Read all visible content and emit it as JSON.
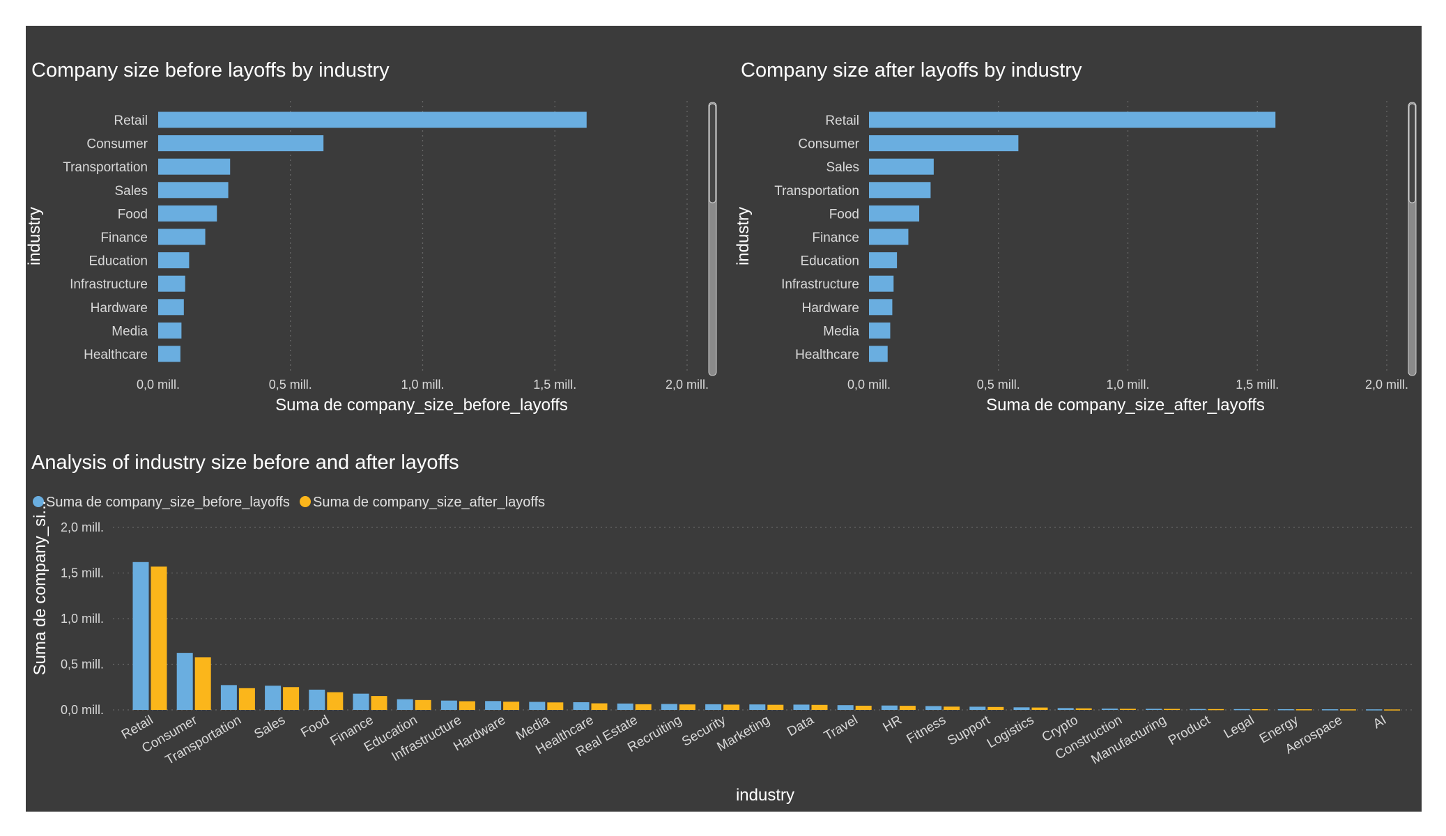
{
  "colors": {
    "background": "#3b3b3b",
    "before": "#6aaee0",
    "after": "#fbb61b",
    "text": "#ffffff",
    "grid": "#666666"
  },
  "chart_data": [
    {
      "type": "bar",
      "orientation": "horizontal",
      "title": "Company size before layoffs by industry",
      "xlabel": "Suma de company_size_before_layoffs",
      "ylabel": "industry",
      "xlim": [
        0,
        2000000
      ],
      "x_ticks": [
        "0,0 mill.",
        "0,5 mill.",
        "1,0 mill.",
        "1,5 mill.",
        "2,0 mill."
      ],
      "categories": [
        "Retail",
        "Consumer",
        "Transportation",
        "Sales",
        "Food",
        "Finance",
        "Education",
        "Infrastructure",
        "Hardware",
        "Media",
        "Healthcare"
      ],
      "values": [
        1620000,
        625000,
        272000,
        265000,
        222000,
        178000,
        117000,
        102000,
        97000,
        88000,
        84000
      ],
      "grid": true,
      "scrollbar": true
    },
    {
      "type": "bar",
      "orientation": "horizontal",
      "title": "Company size after layoffs by industry",
      "xlabel": "Suma de company_size_after_layoffs",
      "ylabel": "industry",
      "xlim": [
        0,
        2000000
      ],
      "x_ticks": [
        "0,0 mill.",
        "0,5 mill.",
        "1,0 mill.",
        "1,5 mill.",
        "2,0 mill."
      ],
      "categories": [
        "Retail",
        "Consumer",
        "Sales",
        "Transportation",
        "Food",
        "Finance",
        "Education",
        "Infrastructure",
        "Hardware",
        "Media",
        "Healthcare"
      ],
      "values": [
        1570000,
        577000,
        250000,
        238000,
        194000,
        152000,
        108000,
        95000,
        90000,
        82000,
        72000
      ],
      "grid": true,
      "scrollbar": true
    },
    {
      "type": "bar",
      "orientation": "vertical",
      "title": "Analysis of industry size before and after layoffs",
      "xlabel": "industry",
      "ylabel": "Suma de company_si...",
      "ylim": [
        0,
        2000000
      ],
      "y_ticks": [
        "0,0 mill.",
        "0,5 mill.",
        "1,0 mill.",
        "1,5 mill.",
        "2,0 mill."
      ],
      "legend": "top-left",
      "grid": true,
      "categories": [
        "Retail",
        "Consumer",
        "Transportation",
        "Sales",
        "Food",
        "Finance",
        "Education",
        "Infrastructure",
        "Hardware",
        "Media",
        "Healthcare",
        "Real Estate",
        "Recruiting",
        "Security",
        "Marketing",
        "Data",
        "Travel",
        "HR",
        "Fitness",
        "Support",
        "Logistics",
        "Crypto",
        "Construction",
        "Manufacturing",
        "Product",
        "Legal",
        "Energy",
        "Aerospace",
        "AI"
      ],
      "series": [
        {
          "name": "Suma de company_size_before_layoffs",
          "values": [
            1620000,
            625000,
            272000,
            265000,
            222000,
            178000,
            117000,
            102000,
            97000,
            88000,
            84000,
            70000,
            65000,
            62000,
            60000,
            58000,
            52000,
            48000,
            42000,
            35000,
            28000,
            20000,
            14000,
            12000,
            10000,
            9000,
            8000,
            7000,
            6000
          ]
        },
        {
          "name": "Suma de company_size_after_layoffs",
          "values": [
            1570000,
            577000,
            238000,
            250000,
            194000,
            152000,
            108000,
            95000,
            90000,
            82000,
            72000,
            62000,
            60000,
            58000,
            56000,
            55000,
            46000,
            45000,
            36000,
            32000,
            26000,
            17000,
            12000,
            11000,
            9000,
            8000,
            7000,
            6000,
            5000
          ]
        }
      ]
    }
  ]
}
